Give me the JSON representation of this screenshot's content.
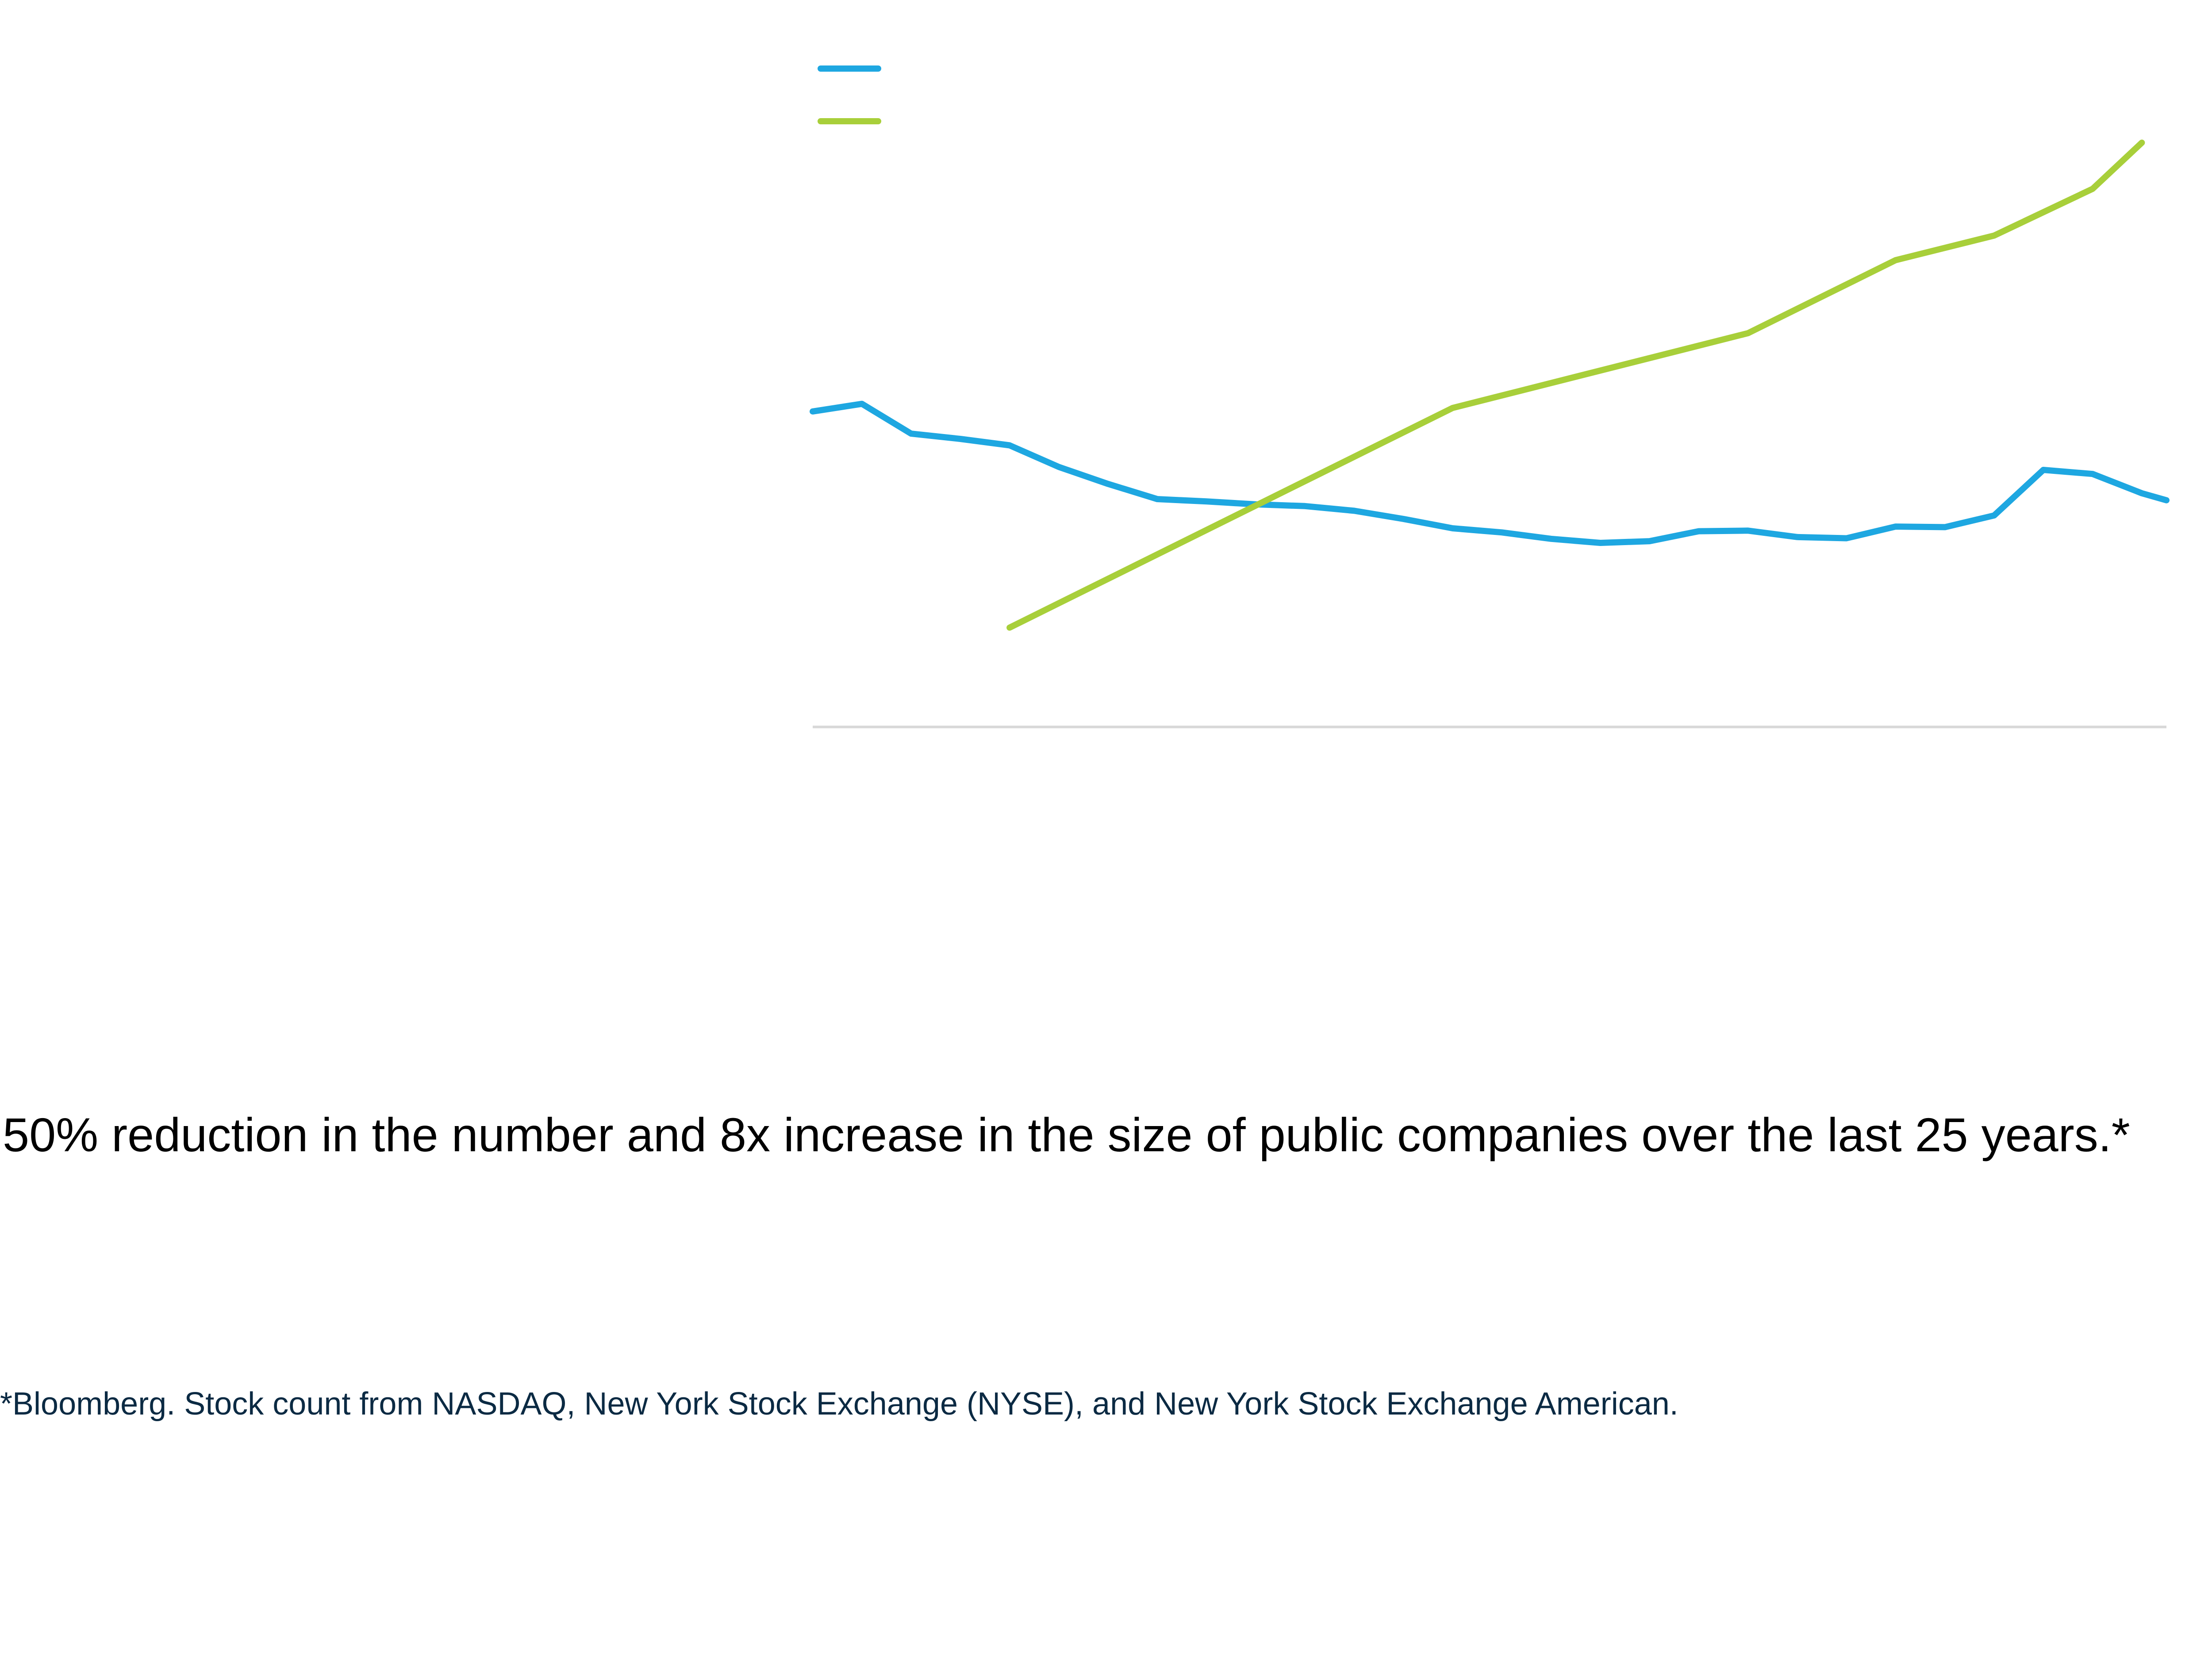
{
  "headline": "50% reduction in the number and 8x increase in the size of public companies over the last 25 years.*",
  "footnote": "*Bloomberg. Stock count from NASDAQ, New York Stock Exchange (NYSE), and New York Stock Exchange American.",
  "colors": {
    "series_a": "#1ea7e1",
    "series_b": "#a8cf3a",
    "axis": "#d9d9d9"
  },
  "chart_data": {
    "type": "line",
    "title": "",
    "xlabel": "",
    "ylabel": "",
    "x": [
      0,
      1,
      2,
      3,
      4,
      5,
      6,
      7,
      8,
      9,
      10,
      11,
      12,
      13,
      14,
      15,
      16,
      17,
      18,
      19,
      20,
      21,
      22,
      23,
      24,
      25,
      26,
      27
    ],
    "xlim": [
      0,
      27.5
    ],
    "ylim": [
      0,
      100
    ],
    "grid": false,
    "legend": "top-left",
    "series": [
      {
        "color": "#1ea7e1",
        "x": [
          0,
          1,
          2,
          3,
          4,
          5,
          6,
          7,
          8,
          9,
          10,
          11,
          12,
          13,
          14,
          15,
          16,
          17,
          18,
          19,
          20,
          21,
          22,
          23,
          24,
          25,
          26,
          27,
          27.5
        ],
        "values": [
          54,
          55.3,
          50.2,
          49.3,
          48.2,
          44.5,
          41.6,
          39,
          38.6,
          38.1,
          37.8,
          37,
          35.6,
          34,
          33.3,
          32.2,
          31.5,
          31.8,
          33.5,
          33.6,
          32.5,
          32.3,
          34.3,
          34.2,
          36.2,
          44,
          43.3,
          40,
          38.8
        ]
      },
      {
        "color": "#a8cf3a",
        "x": [
          4,
          13,
          19,
          22,
          24,
          26,
          27
        ],
        "values": [
          17,
          54.6,
          67.4,
          79.9,
          84.1,
          92.1,
          100
        ]
      }
    ]
  }
}
